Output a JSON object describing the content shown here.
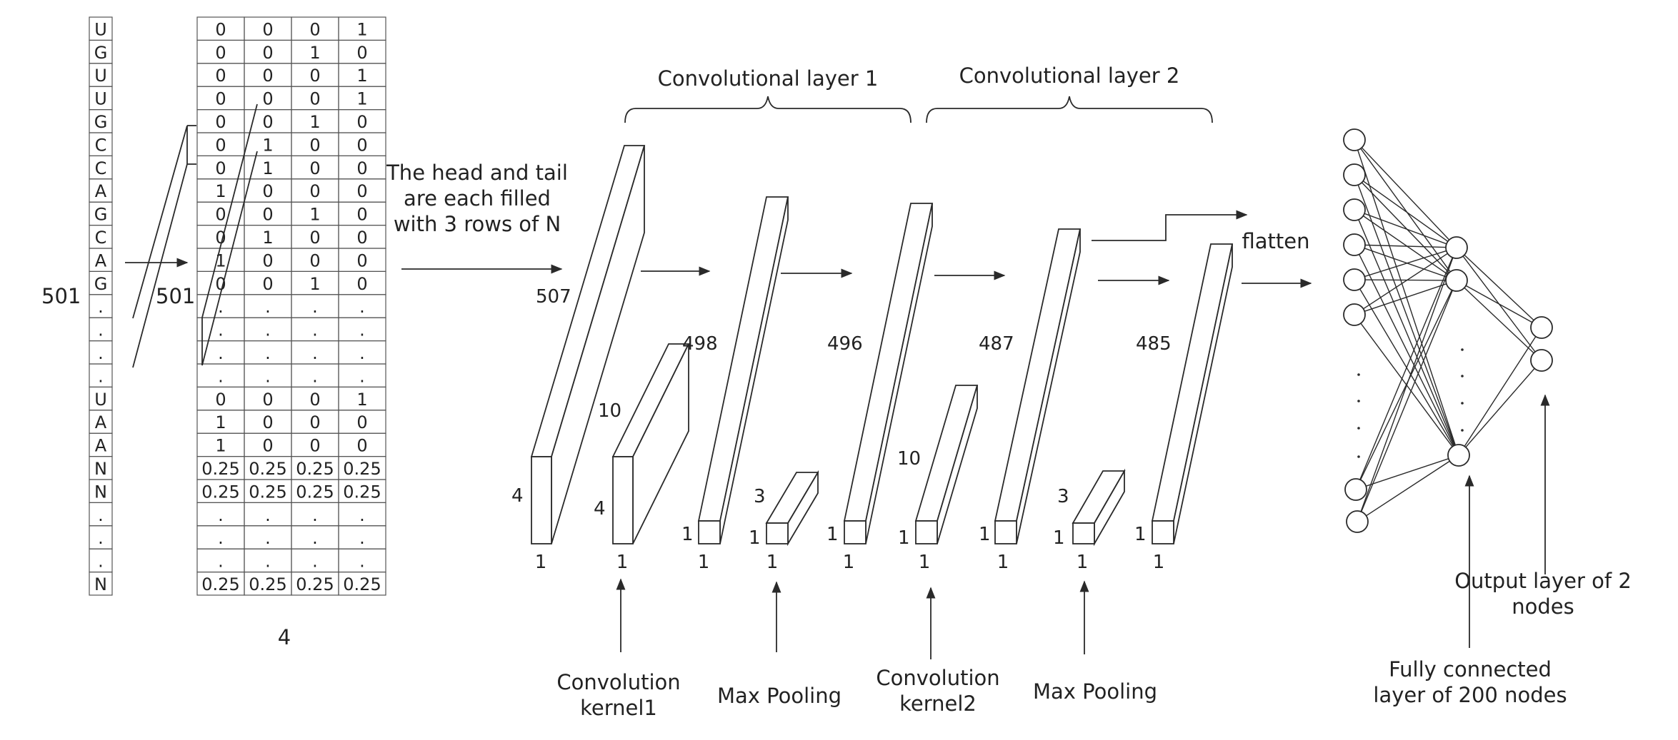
{
  "sequence": [
    "U",
    "G",
    "U",
    "U",
    "G",
    "C",
    "C",
    "A",
    "G",
    "C",
    "A",
    "G",
    ".",
    ".",
    ".",
    ".",
    "U",
    "A",
    "A",
    "N",
    "N",
    ".",
    ".",
    ".",
    "N"
  ],
  "matrix": [
    [
      "0",
      "0",
      "0",
      "1"
    ],
    [
      "0",
      "0",
      "1",
      "0"
    ],
    [
      "0",
      "0",
      "0",
      "1"
    ],
    [
      "0",
      "0",
      "0",
      "1"
    ],
    [
      "0",
      "0",
      "1",
      "0"
    ],
    [
      "0",
      "1",
      "0",
      "0"
    ],
    [
      "0",
      "1",
      "0",
      "0"
    ],
    [
      "1",
      "0",
      "0",
      "0"
    ],
    [
      "0",
      "0",
      "1",
      "0"
    ],
    [
      "0",
      "1",
      "0",
      "0"
    ],
    [
      "1",
      "0",
      "0",
      "0"
    ],
    [
      "0",
      "0",
      "1",
      "0"
    ],
    [
      ".",
      ".",
      ".",
      "."
    ],
    [
      ".",
      ".",
      ".",
      "."
    ],
    [
      ".",
      ".",
      ".",
      "."
    ],
    [
      ".",
      ".",
      ".",
      "."
    ],
    [
      "0",
      "0",
      "0",
      "1"
    ],
    [
      "1",
      "0",
      "0",
      "0"
    ],
    [
      "1",
      "0",
      "0",
      "0"
    ],
    [
      "0.25",
      "0.25",
      "0.25",
      "0.25"
    ],
    [
      "0.25",
      "0.25",
      "0.25",
      "0.25"
    ],
    [
      ".",
      ".",
      ".",
      "."
    ],
    [
      ".",
      ".",
      ".",
      "."
    ],
    [
      ".",
      ".",
      ".",
      "."
    ],
    [
      "0.25",
      "0.25",
      "0.25",
      "0.25"
    ]
  ],
  "labels": {
    "seq_length": "501",
    "matrix_length": "501",
    "matrix_width": "4",
    "padding_note": [
      "The head and tail",
      "are each filled",
      "with 3 rows of N"
    ],
    "conv_layer_1": "Convolutional layer 1",
    "conv_layer_2": "Convolutional layer 2",
    "flatten": "flatten",
    "conv_kernel_1": [
      "Convolution",
      "kernel1"
    ],
    "max_pooling_1": "Max Pooling",
    "conv_kernel_2": [
      "Convolution",
      "kernel2"
    ],
    "max_pooling_2": "Max Pooling",
    "fully_connected": [
      "Fully connected",
      "layer of 200 nodes"
    ],
    "output_layer": [
      "Output layer of 2",
      "nodes"
    ]
  },
  "blocks": [
    {
      "name": "padded-input",
      "height": "507",
      "width": "4",
      "depth": "1"
    },
    {
      "name": "conv-kernel-1",
      "height": "10",
      "width": "4",
      "depth": "1"
    },
    {
      "name": "conv1-output",
      "height": "498",
      "width": "1",
      "depth": "1"
    },
    {
      "name": "pool-kernel-1",
      "height": "3",
      "width": "1",
      "depth": "1"
    },
    {
      "name": "pool1-output",
      "height": "496",
      "width": "1",
      "depth": "1"
    },
    {
      "name": "conv-kernel-2",
      "height": "10",
      "width": "1",
      "depth": "1"
    },
    {
      "name": "conv2-output",
      "height": "487",
      "width": "1",
      "depth": "1"
    },
    {
      "name": "pool-kernel-2",
      "height": "3",
      "width": "1",
      "depth": "1"
    },
    {
      "name": "pool2-output",
      "height": "485",
      "width": "1",
      "depth": "1"
    }
  ]
}
